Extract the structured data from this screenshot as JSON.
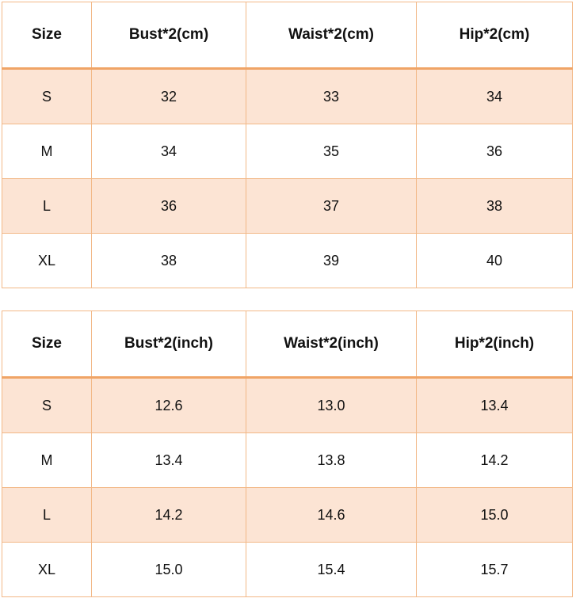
{
  "tables": [
    {
      "header": [
        "Size",
        "Bust*2(cm)",
        "Waist*2(cm)",
        "Hip*2(cm)"
      ],
      "rows": [
        [
          "S",
          "32",
          "33",
          "34"
        ],
        [
          "M",
          "34",
          "35",
          "36"
        ],
        [
          "L",
          "36",
          "37",
          "38"
        ],
        [
          "XL",
          "38",
          "39",
          "40"
        ]
      ]
    },
    {
      "header": [
        "Size",
        "Bust*2(inch)",
        "Waist*2(inch)",
        "Hip*2(inch)"
      ],
      "rows": [
        [
          "S",
          "12.6",
          "13.0",
          "13.4"
        ],
        [
          "M",
          "13.4",
          "13.8",
          "14.2"
        ],
        [
          "L",
          "14.2",
          "14.6",
          "15.0"
        ],
        [
          "XL",
          "15.0",
          "15.4",
          "15.7"
        ]
      ]
    }
  ]
}
